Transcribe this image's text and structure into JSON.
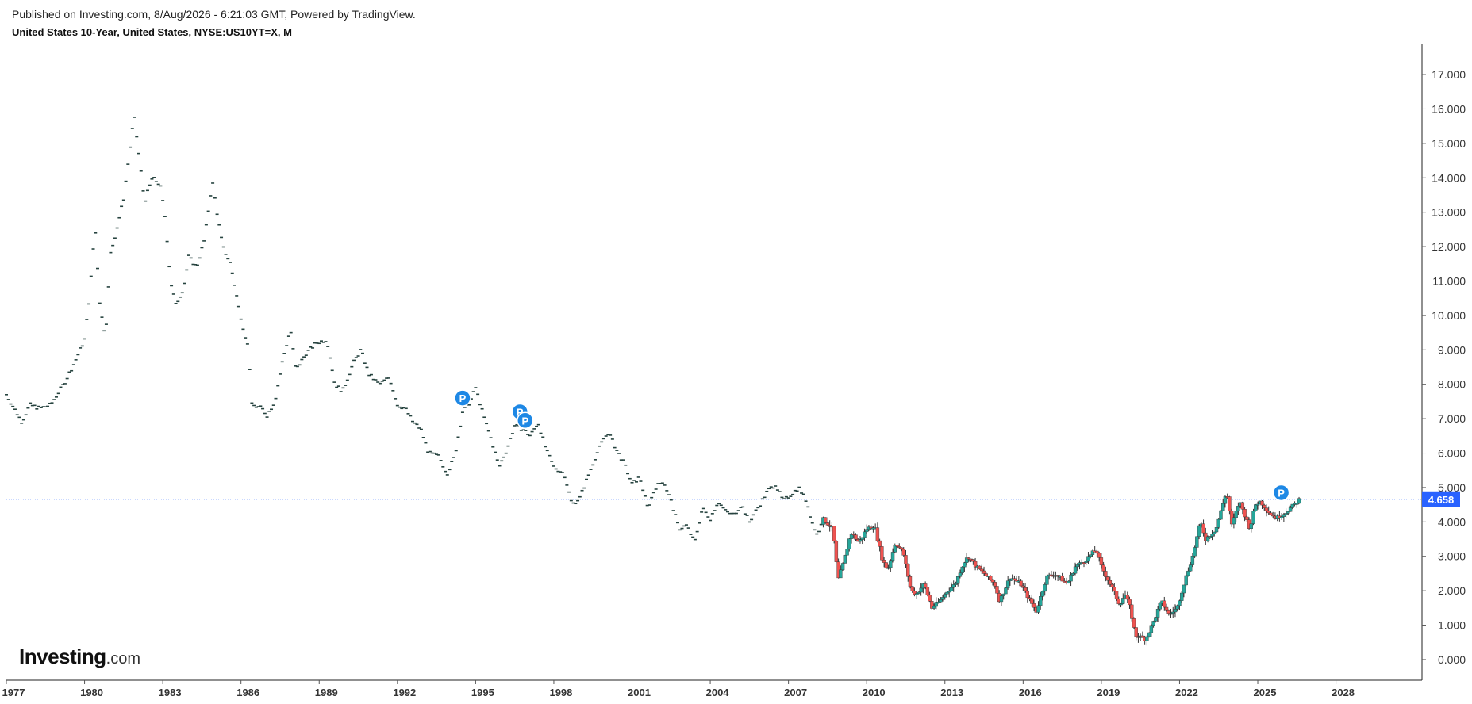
{
  "header": {
    "published": "Published on Investing.com, 8/Aug/2026 - 6:21:03 GMT, Powered by TradingView.",
    "title": "United States 10-Year, United States, NYSE:US10YT=X, M"
  },
  "branding": {
    "logo_main": "Investing",
    "logo_suffix": ".com"
  },
  "colors": {
    "up": "#26a69a",
    "down": "#ef5350",
    "old_bar": "#26433f",
    "last_price": "#2962ff",
    "marker": "#1e88e5",
    "axis": "#222222"
  },
  "chart_data": {
    "type": "candlestick",
    "title": "United States 10-Year, United States, NYSE:US10YT=X, M",
    "interval": "monthly",
    "xlabel": "",
    "ylabel": "",
    "ylim": [
      -0.6,
      17.9
    ],
    "xlim": [
      1977.0,
      2031.3
    ],
    "y_ticks": [
      "0.000",
      "1.000",
      "2.000",
      "3.000",
      "4.000",
      "5.000",
      "6.000",
      "7.000",
      "8.000",
      "9.000",
      "10.000",
      "11.000",
      "12.000",
      "13.000",
      "14.000",
      "15.000",
      "16.000",
      "17.000"
    ],
    "x_ticks": [
      "1977",
      "1980",
      "1983",
      "1986",
      "1989",
      "1992",
      "1995",
      "1998",
      "2001",
      "2004",
      "2007",
      "2010",
      "2013",
      "2016",
      "2019",
      "2022",
      "2025",
      "2028"
    ],
    "last_price": 4.658,
    "last_price_label": "4.658",
    "markers": [
      {
        "label": "P",
        "date": 1994.5,
        "value": 7.6
      },
      {
        "label": "P",
        "date": 1996.7,
        "value": 7.2
      },
      {
        "label": "P",
        "date": 1996.9,
        "value": 6.95
      },
      {
        "label": "P",
        "date": 2025.9,
        "value": 4.85
      }
    ],
    "anchors": [
      [
        1977.0,
        7.7
      ],
      [
        1977.3,
        7.3
      ],
      [
        1977.6,
        6.9
      ],
      [
        1977.9,
        7.4
      ],
      [
        1978.3,
        7.3
      ],
      [
        1978.7,
        7.4
      ],
      [
        1979.2,
        8.0
      ],
      [
        1979.6,
        8.6
      ],
      [
        1980.0,
        9.3
      ],
      [
        1980.2,
        10.6
      ],
      [
        1980.4,
        12.6
      ],
      [
        1980.6,
        10.2
      ],
      [
        1980.8,
        9.4
      ],
      [
        1981.0,
        11.8
      ],
      [
        1981.2,
        12.4
      ],
      [
        1981.5,
        13.4
      ],
      [
        1981.7,
        14.6
      ],
      [
        1981.9,
        15.8
      ],
      [
        1982.1,
        14.6
      ],
      [
        1982.3,
        13.3
      ],
      [
        1982.6,
        14.0
      ],
      [
        1982.9,
        13.8
      ],
      [
        1983.1,
        12.8
      ],
      [
        1983.3,
        11.0
      ],
      [
        1983.5,
        10.3
      ],
      [
        1983.8,
        10.8
      ],
      [
        1984.0,
        11.7
      ],
      [
        1984.3,
        11.4
      ],
      [
        1984.6,
        12.2
      ],
      [
        1984.9,
        13.9
      ],
      [
        1985.1,
        12.9
      ],
      [
        1985.3,
        12.0
      ],
      [
        1985.6,
        11.5
      ],
      [
        1985.9,
        10.3
      ],
      [
        1986.1,
        9.6
      ],
      [
        1986.3,
        9.0
      ],
      [
        1986.4,
        7.4
      ],
      [
        1986.8,
        7.3
      ],
      [
        1987.0,
        7.1
      ],
      [
        1987.3,
        7.5
      ],
      [
        1987.6,
        8.7
      ],
      [
        1987.9,
        9.6
      ],
      [
        1988.1,
        8.4
      ],
      [
        1988.5,
        8.9
      ],
      [
        1988.9,
        9.2
      ],
      [
        1989.3,
        9.3
      ],
      [
        1989.6,
        8.0
      ],
      [
        1989.9,
        7.8
      ],
      [
        1990.3,
        8.6
      ],
      [
        1990.6,
        9.0
      ],
      [
        1990.9,
        8.3
      ],
      [
        1991.3,
        8.0
      ],
      [
        1991.7,
        8.2
      ],
      [
        1992.0,
        7.4
      ],
      [
        1992.3,
        7.3
      ],
      [
        1992.6,
        6.9
      ],
      [
        1992.9,
        6.7
      ],
      [
        1993.2,
        6.0
      ],
      [
        1993.6,
        5.9
      ],
      [
        1993.9,
        5.4
      ],
      [
        1994.2,
        5.9
      ],
      [
        1994.5,
        7.2
      ],
      [
        1994.8,
        7.5
      ],
      [
        1995.0,
        7.9
      ],
      [
        1995.3,
        7.1
      ],
      [
        1995.6,
        6.4
      ],
      [
        1995.9,
        5.6
      ],
      [
        1996.2,
        6.1
      ],
      [
        1996.5,
        6.8
      ],
      [
        1996.8,
        6.7
      ],
      [
        1997.1,
        6.5
      ],
      [
        1997.4,
        6.9
      ],
      [
        1997.7,
        6.1
      ],
      [
        1998.0,
        5.6
      ],
      [
        1998.4,
        5.4
      ],
      [
        1998.7,
        4.5
      ],
      [
        1999.0,
        4.7
      ],
      [
        1999.3,
        5.3
      ],
      [
        1999.6,
        5.9
      ],
      [
        1999.9,
        6.4
      ],
      [
        2000.1,
        6.6
      ],
      [
        2000.4,
        6.1
      ],
      [
        2000.7,
        5.7
      ],
      [
        2001.0,
        5.1
      ],
      [
        2001.3,
        5.3
      ],
      [
        2001.6,
        4.4
      ],
      [
        2001.9,
        5.0
      ],
      [
        2002.2,
        5.2
      ],
      [
        2002.5,
        4.6
      ],
      [
        2002.8,
        3.8
      ],
      [
        2003.1,
        3.9
      ],
      [
        2003.4,
        3.4
      ],
      [
        2003.7,
        4.4
      ],
      [
        2004.0,
        4.1
      ],
      [
        2004.3,
        4.6
      ],
      [
        2004.6,
        4.3
      ],
      [
        2004.9,
        4.2
      ],
      [
        2005.2,
        4.5
      ],
      [
        2005.5,
        4.0
      ],
      [
        2005.9,
        4.5
      ],
      [
        2006.2,
        4.9
      ],
      [
        2006.5,
        5.1
      ],
      [
        2006.8,
        4.6
      ],
      [
        2007.1,
        4.8
      ],
      [
        2007.4,
        5.0
      ],
      [
        2007.7,
        4.6
      ],
      [
        2007.9,
        4.0
      ],
      [
        2008.1,
        3.6
      ],
      [
        2008.3,
        4.1
      ],
      [
        2008.7,
        3.8
      ],
      [
        2008.9,
        2.3
      ],
      [
        2009.1,
        2.8
      ],
      [
        2009.4,
        3.7
      ],
      [
        2009.7,
        3.4
      ],
      [
        2010.0,
        3.8
      ],
      [
        2010.3,
        3.9
      ],
      [
        2010.6,
        2.9
      ],
      [
        2010.8,
        2.6
      ],
      [
        2011.1,
        3.4
      ],
      [
        2011.4,
        3.1
      ],
      [
        2011.7,
        2.0
      ],
      [
        2011.9,
        1.9
      ],
      [
        2012.2,
        2.2
      ],
      [
        2012.5,
        1.5
      ],
      [
        2012.8,
        1.7
      ],
      [
        2013.1,
        2.0
      ],
      [
        2013.4,
        2.2
      ],
      [
        2013.7,
        2.8
      ],
      [
        2013.9,
        3.0
      ],
      [
        2014.2,
        2.7
      ],
      [
        2014.5,
        2.5
      ],
      [
        2014.9,
        2.2
      ],
      [
        2015.1,
        1.7
      ],
      [
        2015.5,
        2.4
      ],
      [
        2015.9,
        2.2
      ],
      [
        2016.2,
        1.8
      ],
      [
        2016.5,
        1.4
      ],
      [
        2016.9,
        2.4
      ],
      [
        2017.2,
        2.5
      ],
      [
        2017.7,
        2.2
      ],
      [
        2018.0,
        2.7
      ],
      [
        2018.4,
        2.9
      ],
      [
        2018.8,
        3.2
      ],
      [
        2019.0,
        2.7
      ],
      [
        2019.4,
        2.1
      ],
      [
        2019.7,
        1.6
      ],
      [
        2019.9,
        1.9
      ],
      [
        2020.1,
        1.5
      ],
      [
        2020.3,
        0.7
      ],
      [
        2020.7,
        0.6
      ],
      [
        2021.0,
        1.1
      ],
      [
        2021.3,
        1.7
      ],
      [
        2021.6,
        1.3
      ],
      [
        2021.9,
        1.5
      ],
      [
        2022.2,
        2.3
      ],
      [
        2022.5,
        3.0
      ],
      [
        2022.8,
        4.0
      ],
      [
        2023.0,
        3.5
      ],
      [
        2023.4,
        3.8
      ],
      [
        2023.8,
        4.9
      ],
      [
        2024.0,
        3.9
      ],
      [
        2024.3,
        4.6
      ],
      [
        2024.7,
        3.8
      ],
      [
        2024.9,
        4.5
      ],
      [
        2025.1,
        4.6
      ],
      [
        2025.4,
        4.3
      ],
      [
        2025.7,
        4.1
      ],
      [
        2025.9,
        4.2
      ],
      [
        2026.1,
        4.3
      ],
      [
        2026.4,
        4.5
      ],
      [
        2026.6,
        4.658
      ]
    ]
  }
}
